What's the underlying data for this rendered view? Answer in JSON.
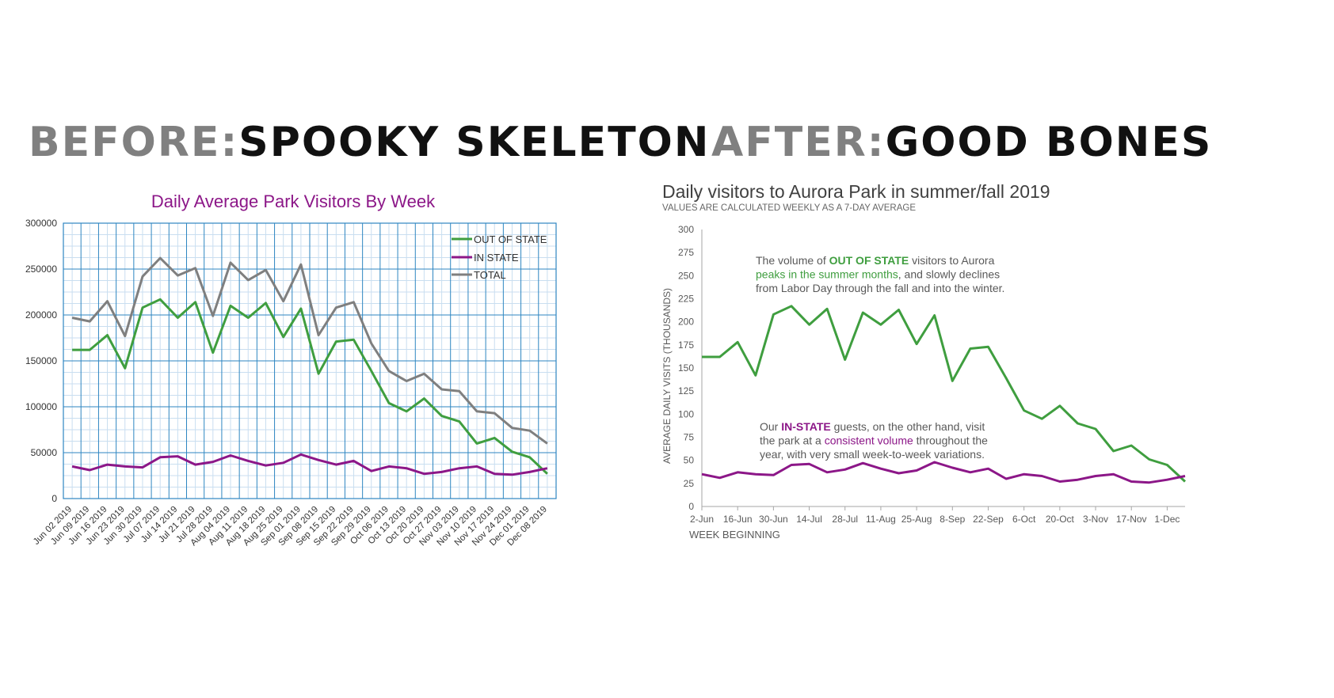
{
  "before": {
    "prefix": "BEFORE:",
    "label": "SPOOKY SKELETON"
  },
  "after": {
    "prefix": "AFTER:",
    "label": "GOOD BONES"
  },
  "colors": {
    "out_of_state": "#3f9e3f",
    "in_state": "#8c1788",
    "total": "#7f7f7f",
    "grid": "#2e86c1",
    "minor_grid": "#c9def0",
    "axis_text": "#595959"
  },
  "chart_data": [
    {
      "type": "line",
      "title": "Daily Average Park Visitors By Week",
      "xlabel": "",
      "ylabel": "",
      "ylim": [
        0,
        300000
      ],
      "yticks": [
        "0",
        "50000",
        "100000",
        "150000",
        "200000",
        "250000",
        "300000"
      ],
      "grid": true,
      "legend": "top-right",
      "categories": [
        "Jun 02 2019",
        "Jun 09 2019",
        "Jun 16 2019",
        "Jun 23 2019",
        "Jun 30 2019",
        "Jul 07 2019",
        "Jul 14 2019",
        "Jul 21 2019",
        "Jul 28 2019",
        "Aug 04 2019",
        "Aug 11 2019",
        "Aug 18 2019",
        "Aug 25 2019",
        "Sep 01 2019",
        "Sep 08 2019",
        "Sep 15 2019",
        "Sep 22 2019",
        "Sep 29 2019",
        "Oct 06 2019",
        "Oct 13 2019",
        "Oct 20 2019",
        "Oct 27 2019",
        "Nov 03 2019",
        "Nov 10 2019",
        "Nov 17 2019",
        "Nov 24 2019",
        "Dec 01 2019",
        "Dec 08 2019"
      ],
      "series": [
        {
          "name": "OUT OF STATE",
          "values": [
            162000,
            162000,
            178000,
            142000,
            208000,
            217000,
            197000,
            214000,
            159000,
            210000,
            197000,
            213000,
            176000,
            207000,
            136000,
            171000,
            173000,
            139000,
            104000,
            95000,
            109000,
            90000,
            84000,
            60000,
            66000,
            51000,
            45000,
            27000
          ]
        },
        {
          "name": "IN STATE",
          "values": [
            35000,
            31000,
            37000,
            35000,
            34000,
            45000,
            46000,
            37000,
            40000,
            47000,
            41000,
            36000,
            39000,
            48000,
            42000,
            37000,
            41000,
            30000,
            35000,
            33000,
            27000,
            29000,
            33000,
            35000,
            27000,
            26000,
            29000,
            33000
          ]
        },
        {
          "name": "TOTAL",
          "values": [
            197000,
            193000,
            215000,
            177000,
            242000,
            262000,
            243000,
            251000,
            199000,
            257000,
            238000,
            249000,
            215000,
            255000,
            178000,
            208000,
            214000,
            169000,
            139000,
            128000,
            136000,
            119000,
            117000,
            95000,
            93000,
            77000,
            74000,
            60000
          ]
        }
      ]
    },
    {
      "type": "line",
      "title": "Daily visitors to Aurora Park in summer/fall 2019",
      "subtitle": "VALUES ARE CALCULATED WEEKLY AS A 7-DAY AVERAGE",
      "xlabel": "WEEK BEGINNING",
      "ylabel": "AVERAGE DAILY VISITS (THOUSANDS)",
      "ylim": [
        0,
        300
      ],
      "yticks": [
        "0",
        "25",
        "50",
        "75",
        "100",
        "125",
        "150",
        "175",
        "200",
        "225",
        "250",
        "275",
        "300"
      ],
      "grid": false,
      "xtick_labels": [
        "2-Jun",
        "16-Jun",
        "30-Jun",
        "14-Jul",
        "28-Jul",
        "11-Aug",
        "25-Aug",
        "8-Sep",
        "22-Sep",
        "6-Oct",
        "20-Oct",
        "3-Nov",
        "17-Nov",
        "1-Dec"
      ],
      "series": [
        {
          "name": "OUT OF STATE",
          "values": [
            162,
            162,
            178,
            142,
            208,
            217,
            197,
            214,
            159,
            210,
            197,
            213,
            176,
            207,
            136,
            171,
            173,
            139,
            104,
            95,
            109,
            90,
            84,
            60,
            66,
            51,
            45,
            27
          ]
        },
        {
          "name": "IN-STATE",
          "values": [
            35,
            31,
            37,
            35,
            34,
            45,
            46,
            37,
            40,
            47,
            41,
            36,
            39,
            48,
            42,
            37,
            41,
            30,
            35,
            33,
            27,
            29,
            33,
            35,
            27,
            26,
            29,
            33
          ]
        }
      ],
      "annotations": [
        {
          "series": "OUT OF STATE",
          "parts": [
            {
              "text": "The volume of ",
              "style": "plain"
            },
            {
              "text": "OUT OF STATE",
              "style": "bold"
            },
            {
              "text": " visitors to Aurora",
              "style": "plain"
            },
            {
              "text": "\n",
              "style": "break"
            },
            {
              "text": "peaks in the summer months",
              "style": "accent"
            },
            {
              "text": ", and slowly declines",
              "style": "plain"
            },
            {
              "text": "\n",
              "style": "break"
            },
            {
              "text": "from Labor Day through the fall and into the winter.",
              "style": "plain"
            }
          ]
        },
        {
          "series": "IN-STATE",
          "parts": [
            {
              "text": "Our ",
              "style": "plain"
            },
            {
              "text": "IN-STATE",
              "style": "bold"
            },
            {
              "text": " guests, on the other hand, visit",
              "style": "plain"
            },
            {
              "text": "\n",
              "style": "break"
            },
            {
              "text": "the park at a ",
              "style": "plain"
            },
            {
              "text": "consistent volume",
              "style": "accent"
            },
            {
              "text": " throughout the",
              "style": "plain"
            },
            {
              "text": "\n",
              "style": "break"
            },
            {
              "text": "year, with very small week-to-week variations.",
              "style": "plain"
            }
          ]
        }
      ]
    }
  ]
}
